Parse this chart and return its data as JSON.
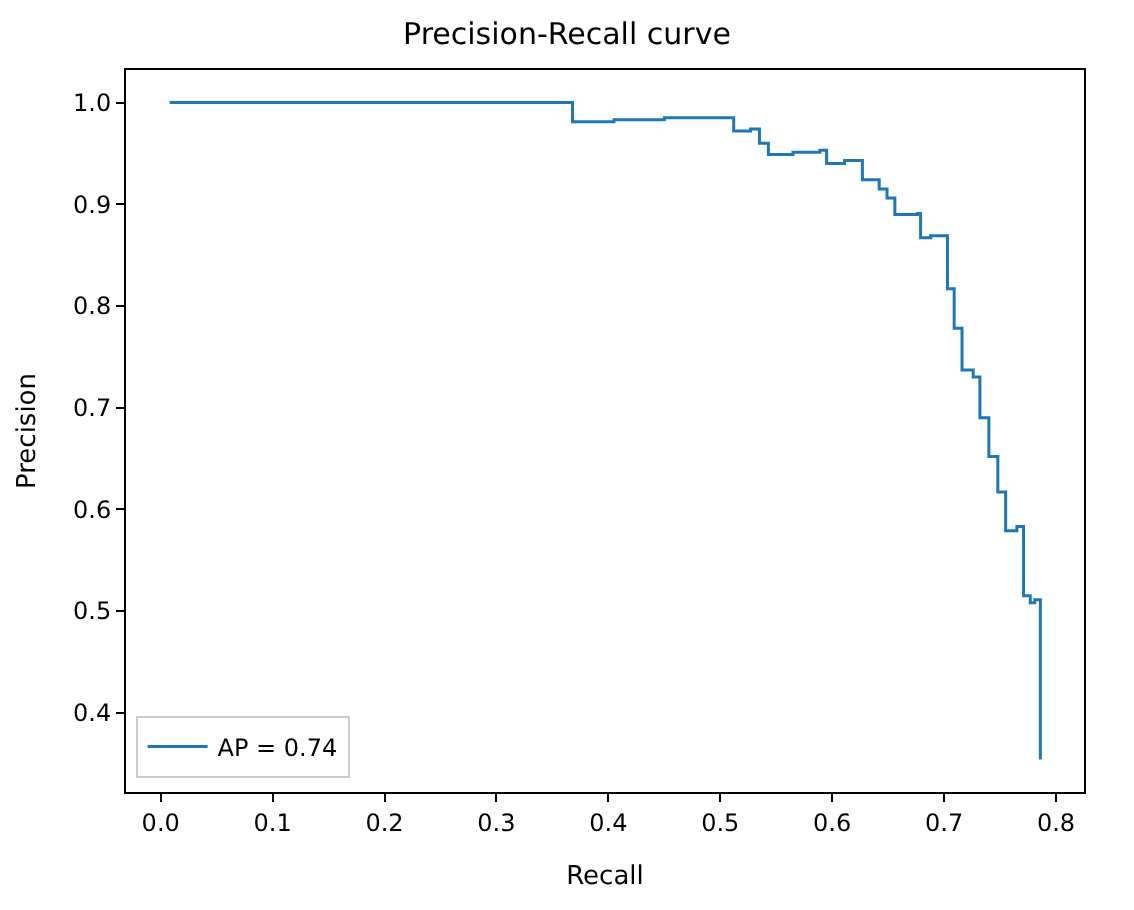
{
  "chart_data": {
    "type": "step",
    "title": "Precision-Recall curve",
    "xlabel": "Recall",
    "ylabel": "Precision",
    "x": [
      0.008,
      0.368,
      0.405,
      0.45,
      0.512,
      0.527,
      0.535,
      0.543,
      0.565,
      0.589,
      0.595,
      0.611,
      0.627,
      0.642,
      0.649,
      0.656,
      0.676,
      0.679,
      0.688,
      0.703,
      0.709,
      0.716,
      0.726,
      0.732,
      0.74,
      0.748,
      0.755,
      0.765,
      0.771,
      0.777,
      0.781,
      0.786
    ],
    "series": [
      {
        "name": "AP = 0.74",
        "color": "#1f77b4",
        "values": [
          1.0,
          0.981,
          0.983,
          0.985,
          0.972,
          0.974,
          0.96,
          0.949,
          0.951,
          0.953,
          0.94,
          0.943,
          0.924,
          0.915,
          0.906,
          0.89,
          0.891,
          0.867,
          0.869,
          0.817,
          0.778,
          0.737,
          0.73,
          0.69,
          0.652,
          0.617,
          0.579,
          0.583,
          0.515,
          0.508,
          0.511,
          0.354
        ]
      }
    ],
    "xlim": [
      -0.031,
      0.825
    ],
    "ylim": [
      0.322,
      1.032
    ],
    "xticks": [
      {
        "value": 0,
        "label": "0.0"
      },
      0.1,
      0.2,
      0.3,
      0.4,
      0.5,
      0.6,
      0.7,
      0.8
    ],
    "yticks": [
      0.4,
      0.5,
      0.6,
      0.7,
      0.8,
      0.9,
      {
        "value": 1,
        "label": "1.0"
      }
    ],
    "legend": "bottom left",
    "marker": "none",
    "line_style": "solid"
  }
}
